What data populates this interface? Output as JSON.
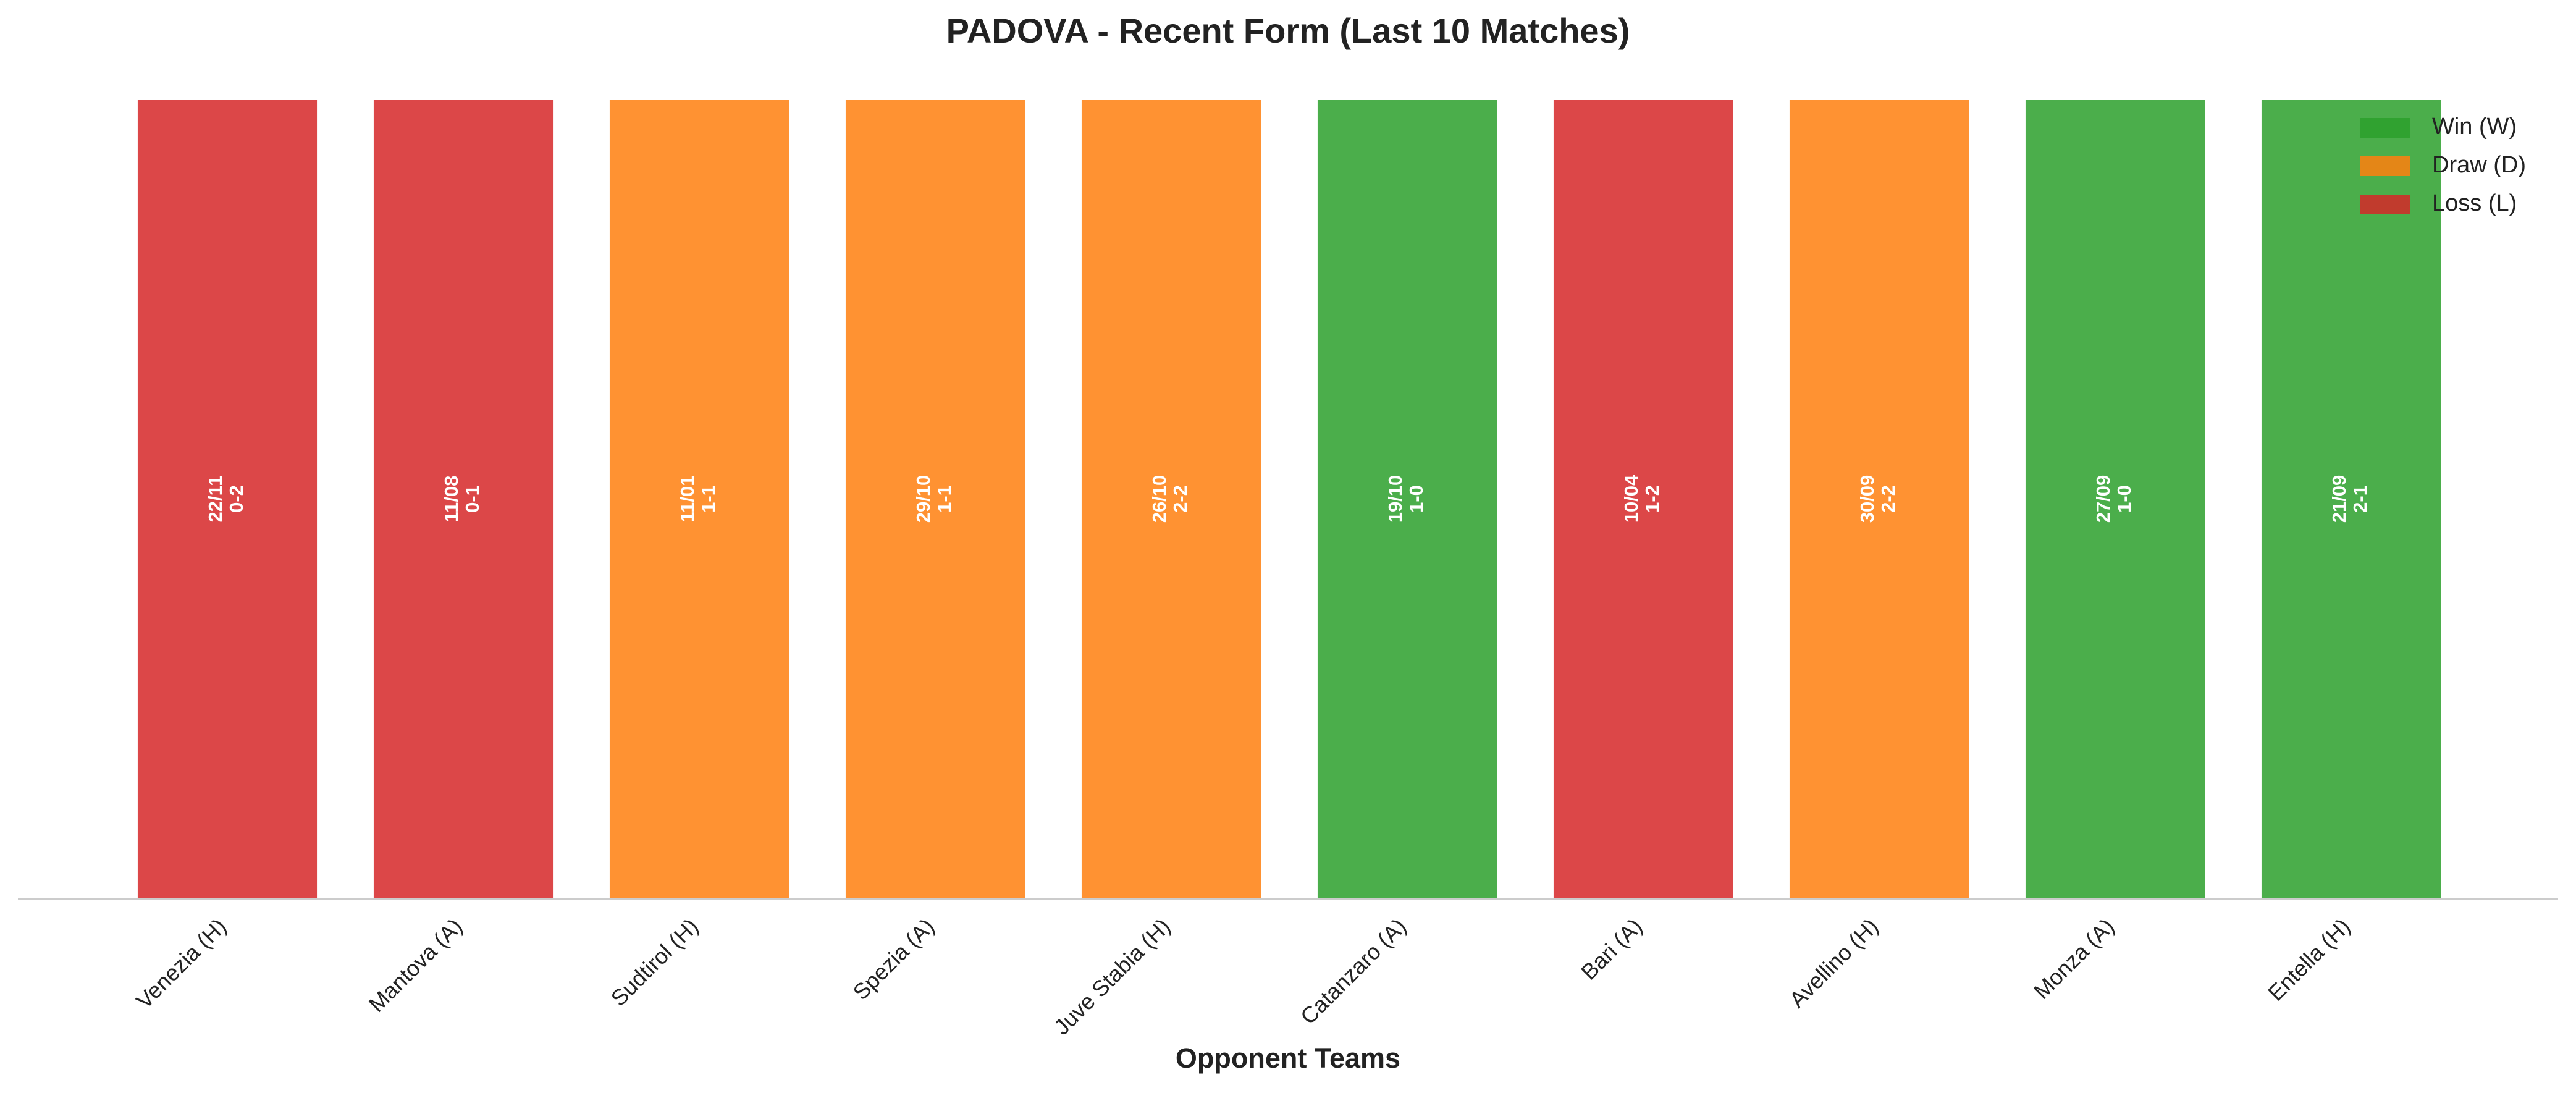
{
  "chart_data": {
    "type": "bar",
    "title": "PADOVA - Recent Form (Last 10 Matches)",
    "x_label": "Opponent Teams",
    "categories": [
      "Venezia (H)",
      "Mantova (A)",
      "Sudtirol (H)",
      "Spezia (A)",
      "Juve Stabia (H)",
      "Catanzaro (A)",
      "Bari (A)",
      "Avellino (H)",
      "Monza (A)",
      "Entella (H)"
    ],
    "values": [
      1,
      1,
      1,
      1,
      1,
      1,
      1,
      1,
      1,
      1
    ],
    "dates": [
      "22/11",
      "11/08",
      "11/01",
      "29/10",
      "26/10",
      "19/10",
      "10/04",
      "30/09",
      "27/09",
      "21/09"
    ],
    "scores": [
      "0-2",
      "0-1",
      "1-1",
      "1-1",
      "2-2",
      "1-0",
      "1-2",
      "2-2",
      "1-0",
      "2-1"
    ],
    "colors": [
      "#d62728",
      "#d62728",
      "#ff7f0e",
      "#ff7f0e",
      "#ff7f0e",
      "#2ca02c",
      "#d62728",
      "#ff7f0e",
      "#2ca02c",
      "#2ca02c"
    ],
    "ylim": [
      0,
      1
    ],
    "legend_position": "upper right",
    "legend": [
      {
        "name": "Win (W)",
        "color": "#2ca02c"
      },
      {
        "name": "Draw (D)",
        "color": "#ff7f0e"
      },
      {
        "name": "Loss (L)",
        "color": "#d62728"
      }
    ]
  }
}
